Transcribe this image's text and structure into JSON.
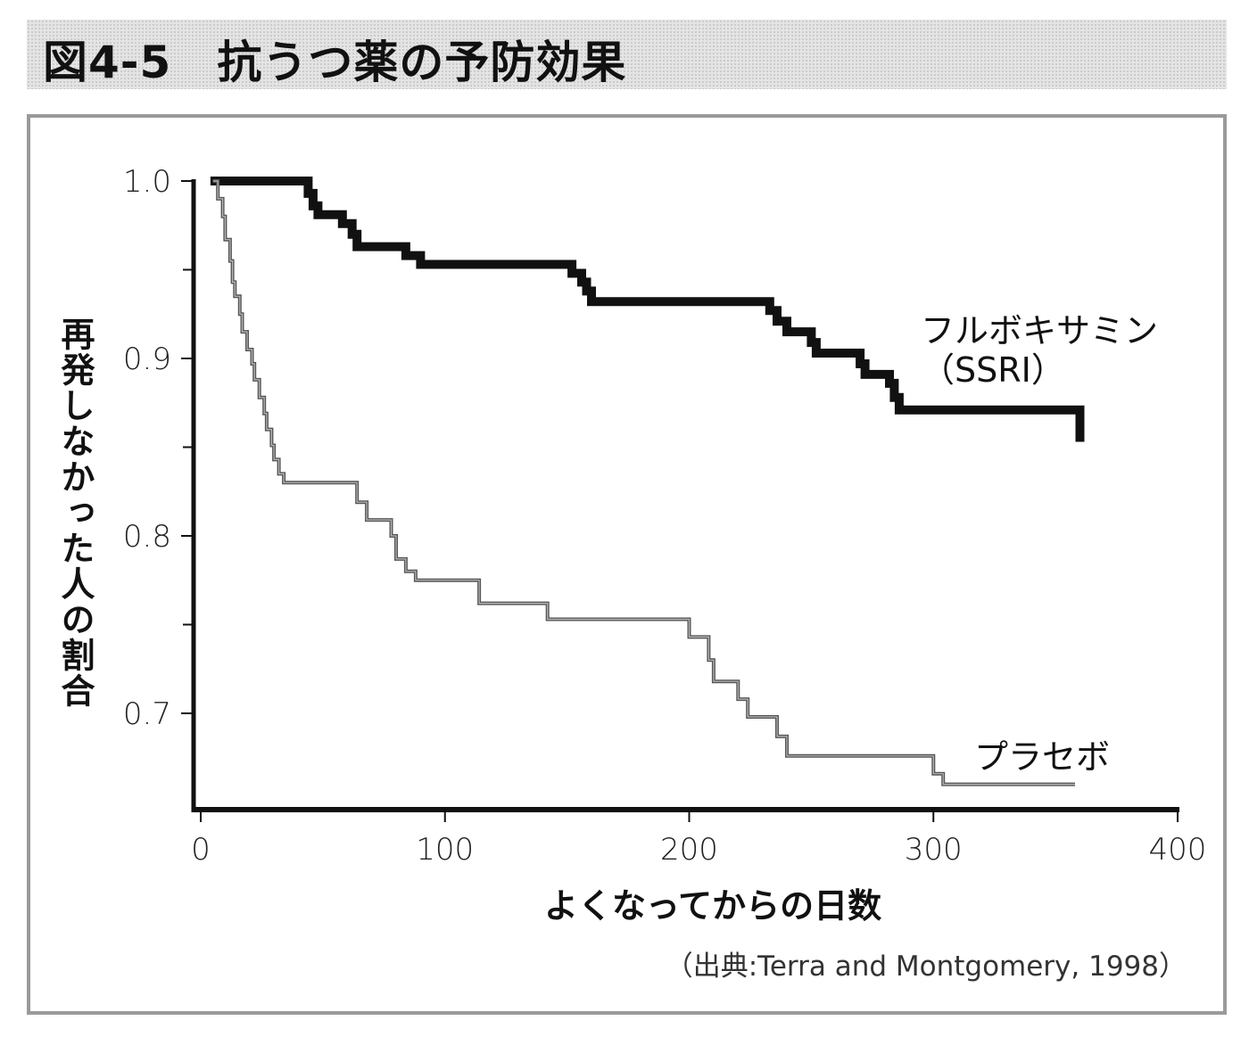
{
  "figure": {
    "title": "図4-5　抗うつ薬の予防効果",
    "source": "（出典:Terra and Montgomery, 1998）"
  },
  "chart_data": {
    "type": "line",
    "title": "",
    "xlabel": "よくなってからの日数",
    "ylabel": "再発しなかった人の割合",
    "xlim": [
      0,
      400
    ],
    "ylim": [
      0.65,
      1.0
    ],
    "x_ticks": [
      0,
      100,
      200,
      300,
      400
    ],
    "x_tick_labels": [
      "0",
      "100",
      "200",
      "300",
      "400"
    ],
    "y_ticks": [
      1.0,
      0.9,
      0.8,
      0.7
    ],
    "y_tick_labels": [
      "1.0",
      "0.9",
      "0.8",
      "0.7"
    ],
    "y_minor_ticks": [
      0.95,
      0.85,
      0.75
    ],
    "grid": false,
    "legend": "none",
    "step": true,
    "series": [
      {
        "name": "フルボキサミン",
        "label_lines": [
          "フルボキサミン",
          "（SSRI）"
        ],
        "color": "#111111",
        "style": "thick",
        "points": [
          [
            4,
            1.0
          ],
          [
            42,
            1.0
          ],
          [
            44,
            0.993
          ],
          [
            46,
            0.986
          ],
          [
            48,
            0.981
          ],
          [
            58,
            0.976
          ],
          [
            62,
            0.97
          ],
          [
            64,
            0.963
          ],
          [
            84,
            0.958
          ],
          [
            90,
            0.953
          ],
          [
            152,
            0.948
          ],
          [
            156,
            0.943
          ],
          [
            158,
            0.938
          ],
          [
            160,
            0.932
          ],
          [
            233,
            0.927
          ],
          [
            236,
            0.921
          ],
          [
            240,
            0.915
          ],
          [
            250,
            0.909
          ],
          [
            252,
            0.903
          ],
          [
            262,
            0.903
          ],
          [
            270,
            0.897
          ],
          [
            272,
            0.891
          ],
          [
            282,
            0.886
          ],
          [
            284,
            0.878
          ],
          [
            286,
            0.871
          ],
          [
            358,
            0.871
          ],
          [
            360,
            0.853
          ]
        ]
      },
      {
        "name": "プラセボ",
        "label_lines": [
          "プラセボ"
        ],
        "color": "#777777",
        "style": "thin",
        "points": [
          [
            5,
            1.0
          ],
          [
            7,
            0.99
          ],
          [
            9,
            0.98
          ],
          [
            10,
            0.967
          ],
          [
            12,
            0.955
          ],
          [
            13,
            0.943
          ],
          [
            14,
            0.935
          ],
          [
            16,
            0.925
          ],
          [
            17,
            0.915
          ],
          [
            19,
            0.905
          ],
          [
            21,
            0.897
          ],
          [
            22,
            0.888
          ],
          [
            24,
            0.878
          ],
          [
            26,
            0.869
          ],
          [
            27,
            0.86
          ],
          [
            29,
            0.851
          ],
          [
            30,
            0.843
          ],
          [
            32,
            0.835
          ],
          [
            34,
            0.83
          ],
          [
            36,
            0.83
          ],
          [
            62,
            0.83
          ],
          [
            64,
            0.819
          ],
          [
            68,
            0.809
          ],
          [
            76,
            0.809
          ],
          [
            78,
            0.8
          ],
          [
            80,
            0.787
          ],
          [
            84,
            0.78
          ],
          [
            88,
            0.775
          ],
          [
            112,
            0.775
          ],
          [
            114,
            0.762
          ],
          [
            140,
            0.762
          ],
          [
            142,
            0.753
          ],
          [
            198,
            0.753
          ],
          [
            200,
            0.743
          ],
          [
            206,
            0.743
          ],
          [
            208,
            0.73
          ],
          [
            210,
            0.718
          ],
          [
            218,
            0.718
          ],
          [
            220,
            0.708
          ],
          [
            224,
            0.698
          ],
          [
            234,
            0.698
          ],
          [
            236,
            0.687
          ],
          [
            240,
            0.676
          ],
          [
            298,
            0.676
          ],
          [
            300,
            0.666
          ],
          [
            304,
            0.66
          ],
          [
            358,
            0.66
          ]
        ]
      }
    ]
  }
}
